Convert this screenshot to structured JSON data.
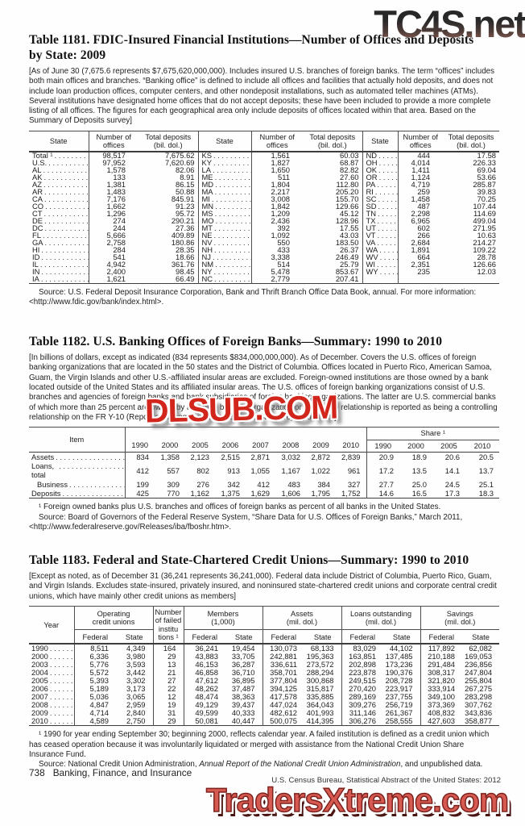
{
  "watermarks": {
    "top": "TC4S.net",
    "middle": "DLSUB.COM",
    "bottom": "TradersXtreme.com"
  },
  "leader_dots": ". . . . . . . . . . . . . . . . . . . . . . . .",
  "page": {
    "footer_page_number": "738",
    "footer_section": "Banking, Finance, and Insurance",
    "footer_credit": "U.S. Census Bureau, Statistical Abstract of the United States: 2012"
  },
  "t1181": {
    "title": "Table 1181. FDIC-Insured Financial Institutions—Number of Offices and Deposits by State: 2009",
    "note": "[As of June 30 (7,675.6 represents $7,675,620,000,000). Includes insured U.S. branches of foreign banks. The term “offices” includes both main offices and branches. “Banking office” is defined to include all offices and facilities that actually hold deposits, and does not include loan production offices, computer centers, and other nondeposit installations, such as automated teller machines (ATMs). Several institutions have designated home offices that do not accept deposits; these have been included to provide a more complete listing of all offices. The figures for each geographical area only include deposits of offices located within that area. Based on the Summary of Deposits survey]",
    "headers": {
      "state": "State",
      "offices": "Number of\noffices",
      "deposits": "Total deposits\n(bil. dol.)"
    },
    "groups": [
      [
        [
          "Total ¹",
          "98,517",
          "7,675.62"
        ],
        [
          "U.S.",
          "97,952",
          "7,620.69"
        ],
        [
          "AL",
          "1,578",
          "82.06"
        ],
        [
          "AK",
          "133",
          "8.91"
        ],
        [
          "AZ",
          "1,381",
          "86.15"
        ],
        [
          "AR",
          "1,483",
          "50.88"
        ],
        [
          "CA",
          "7,176",
          "845.91"
        ],
        [
          "CO",
          "1,662",
          "91.23"
        ],
        [
          "CT",
          "1,296",
          "95.72"
        ],
        [
          "DE",
          "274",
          "290.21"
        ],
        [
          "DC",
          "244",
          "27.36"
        ],
        [
          "FL",
          "5,666",
          "409.89"
        ],
        [
          "GA",
          "2,758",
          "180.86"
        ],
        [
          "HI",
          "284",
          "28.35"
        ],
        [
          "ID",
          "541",
          "18.66"
        ],
        [
          "IL",
          "4,942",
          "361.76"
        ],
        [
          "IN",
          "2,400",
          "98.45"
        ],
        [
          "IA",
          "1,621",
          "66.49"
        ]
      ],
      [
        [
          "KS",
          "1,561",
          "60.03"
        ],
        [
          "KY",
          "1,827",
          "68.87"
        ],
        [
          "LA",
          "1,650",
          "82.82"
        ],
        [
          "ME",
          "511",
          "27.60"
        ],
        [
          "MD",
          "1,804",
          "112.80"
        ],
        [
          "MA",
          "2,217",
          "205.20"
        ],
        [
          "MI",
          "3,008",
          "155.70"
        ],
        [
          "MN",
          "1,842",
          "129.66"
        ],
        [
          "MS",
          "1,209",
          "45.12"
        ],
        [
          "MO",
          "2,436",
          "128.96"
        ],
        [
          "MT",
          "392",
          "17.55"
        ],
        [
          "NE",
          "1,092",
          "43.03"
        ],
        [
          "NV",
          "550",
          "183.50"
        ],
        [
          "NH",
          "433",
          "26.37"
        ],
        [
          "NJ",
          "3,338",
          "246.49"
        ],
        [
          "NM",
          "514",
          "25.79"
        ],
        [
          "NY",
          "5,478",
          "853.67"
        ],
        [
          "NC",
          "2,779",
          "207.41"
        ]
      ],
      [
        [
          "ND",
          "444",
          "17.58"
        ],
        [
          "OH",
          "4,014",
          "226.33"
        ],
        [
          "OK",
          "1,411",
          "69.04"
        ],
        [
          "OR",
          "1,124",
          "53.66"
        ],
        [
          "PA",
          "4,719",
          "285.87"
        ],
        [
          "RI",
          "259",
          "39.83"
        ],
        [
          "SC",
          "1,458",
          "70.25"
        ],
        [
          "SD",
          "487",
          "107.44"
        ],
        [
          "TN",
          "2,298",
          "114.69"
        ],
        [
          "TX",
          "6,965",
          "499.04"
        ],
        [
          "UT",
          "602",
          "271.95"
        ],
        [
          "VT",
          "266",
          "10.63"
        ],
        [
          "VA",
          "2,684",
          "214.27"
        ],
        [
          "WA",
          "1,891",
          "109.22"
        ],
        [
          "WV",
          "664",
          "28.78"
        ],
        [
          "WI",
          "2,351",
          "126.66"
        ],
        [
          "WY",
          "235",
          "12.03"
        ],
        [
          "",
          "",
          ""
        ]
      ]
    ],
    "source": "Source: U.S. Federal Deposit Insurance Corporation, Bank and Thrift Branch Office Data Book, annual. For more information: <http://www.fdic.gov/bank/index.html>."
  },
  "t1182": {
    "title": "Table 1182. U.S. Banking Offices of Foreign Banks—Summary: 1990 to 2010",
    "note": "[In billions of dollars, except as indicated (834 represents $834,000,000,000). As of December. Covers the U.S. offices of foreign banking organizations that are located in the 50 states and the District of Columbia. Offices located in Puerto Rico, American Samoa, Guam, the Virgin Islands and other U.S.-affiliated insular areas are excluded. Foreign-owned institutions are those owned by a bank located outside of the United States and its affiliated insular areas.  The U.S. offices of foreign banking organizations consist of U.S. branches and agencies of foreign banks and bank subsidiaries of foreign banking organizations. The latter are U.S. commercial banks of which more than 25 percent are owned by a foreign banking organization or where the relationship is reported as being a controlling relationship on the FR Y-10 (Report of Changes in Organizational Structure) report form]",
    "item_header": "Item",
    "share_header": "Share ¹",
    "years": [
      "1990",
      "2000",
      "2005",
      "2006",
      "2007",
      "2008",
      "2009",
      "2010"
    ],
    "share_years": [
      "1990",
      "2000",
      "2005",
      "2010"
    ],
    "rows": [
      {
        "label": "Assets",
        "indent": false,
        "values": [
          "834",
          "1,358",
          "2,123",
          "2,515",
          "2,871",
          "3,032",
          "2,872",
          "2,839"
        ],
        "share": [
          "20.9",
          "18.9",
          "20.6",
          "20.5"
        ]
      },
      {
        "label": "Loans, total",
        "indent": false,
        "values": [
          "412",
          "557",
          "802",
          "913",
          "1,055",
          "1,167",
          "1,022",
          "961"
        ],
        "share": [
          "17.2",
          "13.5",
          "14.1",
          "13.7"
        ]
      },
      {
        "label": "Business",
        "indent": true,
        "values": [
          "199",
          "309",
          "276",
          "342",
          "412",
          "483",
          "384",
          "327"
        ],
        "share": [
          "27.7",
          "25.0",
          "24.5",
          "25.1"
        ]
      },
      {
        "label": "Deposits",
        "indent": false,
        "values": [
          "425",
          "770",
          "1,162",
          "1,375",
          "1,629",
          "1,606",
          "1,795",
          "1,752"
        ],
        "share": [
          "14.6",
          "16.5",
          "17.3",
          "18.3"
        ]
      }
    ],
    "footnote": "¹ Foreign owned banks plus U.S. branches and offices of foreign banks as percent of all banks in the United States.",
    "source": "Source: Board of Governors of the Federal Reserve System, “Share Data for U.S. Offices of Foreign Banks,” March 2011, <http://www.federalreserve.gov/Releases/iba/fboshr.htm>."
  },
  "t1183": {
    "title": "Table 1183. Federal and State-Chartered Credit Unions—Summary: 1990 to 2010",
    "note": "[Except as noted, as of December 31 (36,241 represents 36,241,000). Federal data include District of Columbia, Puerto Rico, Guam, and Virgin Islands. Excludes state-insured, privately insured, and noninsured state-chartered credit unions and corporate central credit unions, which have mainly other credit unions as members]",
    "headers": {
      "year": "Year",
      "operating": "Operating\ncredit unions",
      "failed": "Number\nof failed\ninstitu\ntions ¹",
      "members": "Members\n(1,000)",
      "assets": "Assets\n(mil. dol.)",
      "loans": "Loans outstanding\n(mil. dol.)",
      "savings": "Savings\n(mil. dol.)",
      "federal": "Federal",
      "state": "State"
    },
    "rows": [
      [
        "1990",
        "8,511",
        "4,349",
        "164",
        "36,241",
        "19,454",
        "130,073",
        "68,133",
        "83,029",
        "44,102",
        "117,892",
        "62,082"
      ],
      [
        "2000",
        "6,336",
        "3,980",
        "29",
        "43,883",
        "33,705",
        "242,881",
        "195,363",
        "163,851",
        "137,485",
        "210,188",
        "169,053"
      ],
      [
        "2003",
        "5,776",
        "3,593",
        "13",
        "46,153",
        "36,287",
        "336,611",
        "273,572",
        "202,898",
        "173,236",
        "291,484",
        "236,856"
      ],
      [
        "2004",
        "5,572",
        "3,442",
        "21",
        "46,858",
        "36,710",
        "358,701",
        "288,294",
        "223,878",
        "190,376",
        "308,317",
        "247,804"
      ],
      [
        "2005",
        "5,393",
        "3,302",
        "27",
        "47,612",
        "36,895",
        "377,804",
        "300,868",
        "249,515",
        "208,728",
        "321,820",
        "255,804"
      ],
      [
        "2006",
        "5,189",
        "3,173",
        "22",
        "48,262",
        "37,487",
        "394,125",
        "315,817",
        "270,420",
        "223,917",
        "333,914",
        "267,275"
      ],
      [
        "2007",
        "5,036",
        "3,065",
        "12",
        "48,474",
        "38,363",
        "417,578",
        "335,885",
        "289,169",
        "237,755",
        "349,100",
        "283,298"
      ],
      [
        "2008",
        "4,847",
        "2,959",
        "19",
        "49,129",
        "39,437",
        "447,024",
        "364,043",
        "309,276",
        "256,719",
        "373,369",
        "307,762"
      ],
      [
        "2009",
        "4,714",
        "2,840",
        "31",
        "49,599",
        "40,333",
        "482,612",
        "401,993",
        "311,146",
        "261,367",
        "408,832",
        "343,836"
      ],
      [
        "2010",
        "4,589",
        "2,750",
        "29",
        "50,081",
        "40,447",
        "500,075",
        "414,395",
        "306,276",
        "258,555",
        "427,603",
        "358,877"
      ]
    ],
    "footnote": "¹ 1990 for year ending September 30; beginning 2000, reflects calendar year. A failed institution is defined as a credit union which has ceased operation because it was involuntarily liquidated or merged with assistance from the National Credit Union Share Insurance Fund.",
    "source_prefix": "Source: National Credit Union Administration, ",
    "source_italic": "Annual Report of the National Credit Union Administration",
    "source_suffix": ", and unpublished data."
  }
}
